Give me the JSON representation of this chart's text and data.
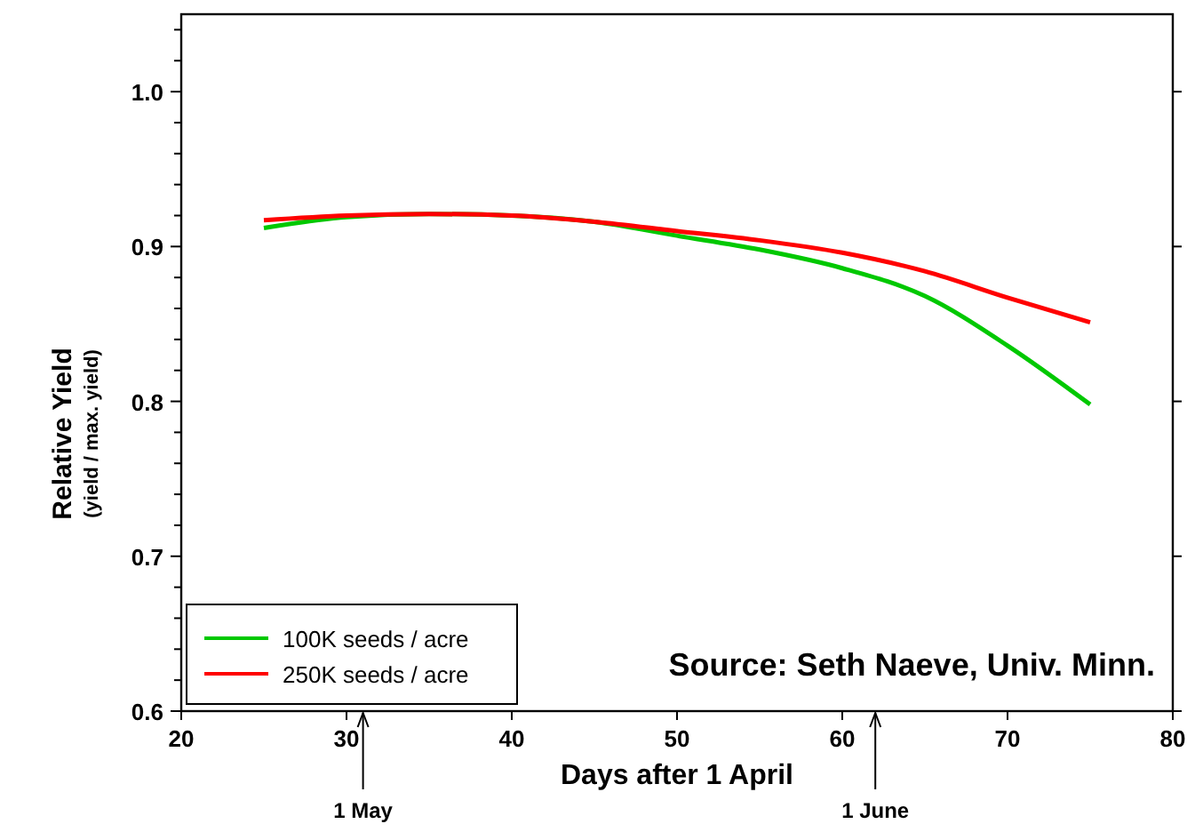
{
  "chart_data": {
    "type": "line",
    "xlabel": "Days after 1 April",
    "ylabel": "Relative Yield\n(yield / max. yield)",
    "x": [
      25,
      30,
      35,
      40,
      45,
      50,
      55,
      60,
      65,
      70,
      75
    ],
    "series": [
      {
        "name": "100K seeds / acre",
        "color": "#00c800",
        "values": [
          0.912,
          0.919,
          0.921,
          0.92,
          0.916,
          0.907,
          0.898,
          0.886,
          0.868,
          0.836,
          0.798
        ]
      },
      {
        "name": "250K seeds / acre",
        "color": "#ff0000",
        "values": [
          0.917,
          0.92,
          0.921,
          0.92,
          0.916,
          0.91,
          0.904,
          0.896,
          0.884,
          0.867,
          0.851
        ]
      }
    ],
    "xlim": [
      20,
      80
    ],
    "xticks": [
      20,
      30,
      40,
      50,
      60,
      70,
      80
    ],
    "ylim": [
      0.6,
      1.05
    ],
    "yticks": [
      {
        "value": 0.6,
        "label": "0.6"
      },
      {
        "value": 0.62,
        "label": null
      },
      {
        "value": 0.64,
        "label": null
      },
      {
        "value": 0.66,
        "label": null
      },
      {
        "value": 0.68,
        "label": null
      },
      {
        "value": 0.7,
        "label": "0.7"
      },
      {
        "value": 0.72,
        "label": null
      },
      {
        "value": 0.74,
        "label": null
      },
      {
        "value": 0.76,
        "label": null
      },
      {
        "value": 0.78,
        "label": null
      },
      {
        "value": 0.8,
        "label": "0.8"
      },
      {
        "value": 0.82,
        "label": null
      },
      {
        "value": 0.84,
        "label": null
      },
      {
        "value": 0.86,
        "label": null
      },
      {
        "value": 0.88,
        "label": null
      },
      {
        "value": 0.9,
        "label": "0.9"
      },
      {
        "value": 0.92,
        "label": null
      },
      {
        "value": 0.94,
        "label": null
      },
      {
        "value": 0.96,
        "label": null
      },
      {
        "value": 0.98,
        "label": null
      },
      {
        "value": 1.0,
        "label": "1.0"
      },
      {
        "value": 1.02,
        "label": null
      },
      {
        "value": 1.04,
        "label": null
      }
    ],
    "annotations": [
      "Source: Seth Naeve, Univ. Minn."
    ],
    "ref_lines": [
      {
        "axis": "x",
        "value": 31,
        "label": "1 May"
      },
      {
        "axis": "x",
        "value": 62,
        "label": "1 June"
      }
    ],
    "legend": "bottom left",
    "grid": false,
    "marker": "none",
    "line_style": "solid"
  }
}
